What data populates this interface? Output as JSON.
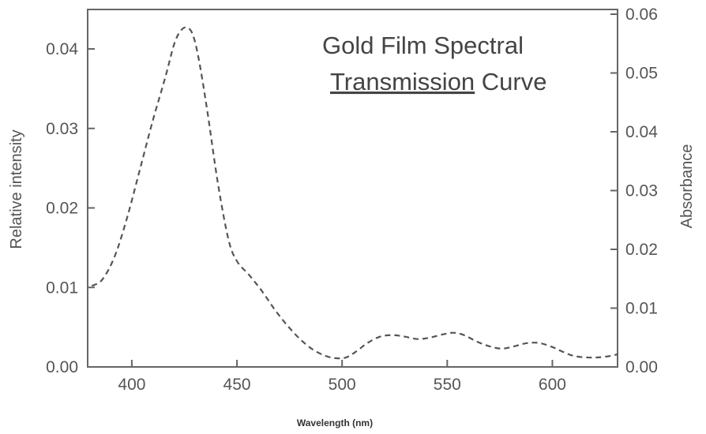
{
  "chart_data": {
    "type": "line",
    "title_line1": "Gold Film Spectral",
    "title_line2_underlined": "Transmission",
    "title_line2_rest": " Curve",
    "xlabel": "Wavelength (nm)",
    "ylabel_left": "Relative intensity",
    "ylabel_right": "Absorbance",
    "xlim": [
      379,
      631
    ],
    "ylim_left": [
      0,
      0.045
    ],
    "ylim_right": [
      0,
      0.06
    ],
    "x_ticks": [
      400,
      450,
      500,
      550,
      600
    ],
    "x_tick_labels": [
      "400",
      "450",
      "500",
      "550",
      "600"
    ],
    "y_left_ticks": [
      0,
      0.01,
      0.02,
      0.03,
      0.04
    ],
    "y_left_tick_labels": [
      "0.00",
      "0.01",
      "0.02",
      "0.03",
      "0.04"
    ],
    "y_right_ticks": [
      0,
      0.01,
      0.02,
      0.03,
      0.04,
      0.05,
      0.06
    ],
    "y_right_tick_labels": [
      "0.00",
      "0.01",
      "0.02",
      "0.03",
      "0.04",
      "0.05",
      "0.06"
    ],
    "grid": false,
    "series": [
      {
        "line_style": "dashed",
        "color": "#555555",
        "x": [
          381,
          386,
          392,
          398,
          404,
          410,
          416,
          420,
          423,
          426,
          429,
          432,
          436,
          441,
          446,
          450,
          456,
          462,
          468,
          474,
          480,
          486,
          492,
          497,
          502,
          507,
          512,
          518,
          524,
          530,
          536,
          542,
          548,
          553,
          558,
          564,
          570,
          576,
          582,
          588,
          594,
          600,
          605,
          610,
          616,
          622,
          628,
          631
        ],
        "y": [
          0.0102,
          0.011,
          0.014,
          0.019,
          0.025,
          0.031,
          0.0365,
          0.0405,
          0.0422,
          0.0427,
          0.0418,
          0.0385,
          0.032,
          0.023,
          0.016,
          0.0133,
          0.0115,
          0.0095,
          0.0072,
          0.0052,
          0.0035,
          0.0022,
          0.0014,
          0.0011,
          0.0012,
          0.002,
          0.003,
          0.0038,
          0.004,
          0.0038,
          0.0035,
          0.0037,
          0.0041,
          0.0043,
          0.004,
          0.0032,
          0.0026,
          0.0023,
          0.0026,
          0.003,
          0.003,
          0.0025,
          0.0019,
          0.0014,
          0.0012,
          0.0012,
          0.0014,
          0.0016
        ]
      }
    ]
  }
}
